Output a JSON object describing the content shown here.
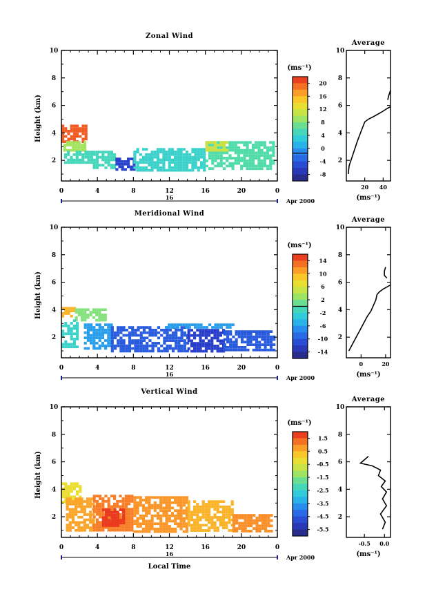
{
  "panels": [
    {
      "title": "Zonal Wind",
      "ylabel": "Height (km)",
      "y_ticks": [
        "2",
        "4",
        "6",
        "8",
        "10"
      ],
      "x_ticks": [
        "0",
        "4",
        "8",
        "12",
        "16",
        "20",
        "0"
      ],
      "date_day": "16",
      "date_month": "Apr 2000",
      "colorbar": {
        "unit_label": "(ms⁻¹)",
        "range": [
          -8,
          22
        ],
        "tick_labels": [
          "20",
          "16",
          "12",
          "8",
          "4",
          "0",
          "-4",
          "-8"
        ],
        "zero_line_value": 0
      },
      "avg": {
        "title": "Average",
        "x_ticks": [
          "20",
          "40"
        ],
        "unit_label": "(ms⁻¹)",
        "y_ticks": [
          "2",
          "4",
          "6",
          "8",
          "10"
        ]
      }
    },
    {
      "title": "Meridional Wind",
      "ylabel": "Height (km)",
      "y_ticks": [
        "2",
        "4",
        "6",
        "8",
        "10"
      ],
      "x_ticks": [
        "0",
        "4",
        "8",
        "12",
        "16",
        "20",
        "0"
      ],
      "date_day": "16",
      "date_month": "Apr 2000",
      "colorbar": {
        "unit_label": "(ms⁻¹)",
        "range": [
          -16,
          16
        ],
        "tick_labels": [
          "14",
          "10",
          "6",
          "2",
          "-2",
          "-6",
          "-10",
          "-14"
        ],
        "zero_line_value": 0
      },
      "avg": {
        "title": "Average",
        "x_ticks": [
          "0",
          "20"
        ],
        "unit_label": "(ms⁻¹)",
        "y_ticks": [
          "2",
          "4",
          "6",
          "8",
          "10"
        ]
      }
    },
    {
      "title": "Vertical Wind",
      "ylabel": "Height (km)",
      "y_ticks": [
        "2",
        "4",
        "6",
        "8",
        "10"
      ],
      "x_ticks": [
        "0",
        "4",
        "8",
        "12",
        "16",
        "20",
        "0"
      ],
      "date_day": "16",
      "date_month": "Apr 2000",
      "xlabel": "Local Time",
      "colorbar": {
        "unit_label": "(ms⁻¹)",
        "range": [
          -7,
          2
        ],
        "tick_labels": [
          "1.5",
          "0.5",
          "-0.5",
          "-1.5",
          "-2.5",
          "-3.5",
          "-4.5",
          "-5.5"
        ],
        "zero_line_value": null
      },
      "avg": {
        "title": "Average",
        "x_ticks": [
          "-0.5",
          "0.0"
        ],
        "unit_label": "(ms⁻¹)",
        "y_ticks": [
          "2",
          "4",
          "6",
          "8",
          "10"
        ]
      }
    }
  ],
  "chart_data": [
    {
      "type": "heatmap",
      "title": "Zonal Wind",
      "xlabel": "",
      "ylabel": "Height (km)",
      "xlim": [
        0,
        24
      ],
      "ylim": [
        0.5,
        10
      ],
      "x_ticks": [
        0,
        4,
        8,
        12,
        16,
        20,
        24
      ],
      "color_range": [
        -8,
        22
      ],
      "regions": [
        {
          "x": [
            0,
            2.6
          ],
          "y": [
            3.3,
            4.6
          ],
          "value": 20
        },
        {
          "x": [
            0.2,
            2.6
          ],
          "y": [
            2.7,
            3.4
          ],
          "value": 10
        },
        {
          "x": [
            0.3,
            3.2
          ],
          "y": [
            1.8,
            2.7
          ],
          "value": 6
        },
        {
          "x": [
            3.5,
            6
          ],
          "y": [
            1.5,
            2.7
          ],
          "value": 6
        },
        {
          "x": [
            6,
            8.2
          ],
          "y": [
            1.4,
            2.2
          ],
          "value": -4
        },
        {
          "x": [
            8,
            16
          ],
          "y": [
            1.3,
            2.9
          ],
          "value": 5
        },
        {
          "x": [
            16,
            23.5
          ],
          "y": [
            1.3,
            3.4
          ],
          "value": 7
        },
        {
          "x": [
            16,
            18.5
          ],
          "y": [
            2.8,
            3.4
          ],
          "value": 12
        }
      ],
      "average_profile": {
        "xlabel": "(ms⁻¹)",
        "xlim": [
          0,
          48
        ],
        "ylim": [
          0.5,
          10
        ],
        "x": [
          2,
          3,
          6,
          9,
          12,
          16,
          20,
          24,
          30,
          38,
          45,
          48
        ],
        "y": [
          1.0,
          1.6,
          2.2,
          2.8,
          3.4,
          4.1,
          4.8,
          5.0,
          5.2,
          5.5,
          5.8,
          5.9
        ],
        "x_upper": [
          45,
          46,
          47,
          48
        ],
        "y_upper": [
          6.4,
          6.7,
          6.9,
          7.1
        ]
      }
    },
    {
      "type": "heatmap",
      "title": "Meridional Wind",
      "xlabel": "",
      "ylabel": "Height (km)",
      "xlim": [
        0,
        24
      ],
      "ylim": [
        0.5,
        10
      ],
      "x_ticks": [
        0,
        4,
        8,
        12,
        16,
        20,
        24
      ],
      "color_range": [
        -16,
        16
      ],
      "regions": [
        {
          "x": [
            0,
            1.5
          ],
          "y": [
            3.6,
            4.2
          ],
          "value": 10
        },
        {
          "x": [
            1.5,
            5
          ],
          "y": [
            3.3,
            4.1
          ],
          "value": 2
        },
        {
          "x": [
            0,
            1.8
          ],
          "y": [
            1.2,
            3.3
          ],
          "value": -2
        },
        {
          "x": [
            2.5,
            5.5
          ],
          "y": [
            1.1,
            3.0
          ],
          "value": -6
        },
        {
          "x": [
            5.5,
            14
          ],
          "y": [
            1.0,
            2.8
          ],
          "value": -10
        },
        {
          "x": [
            14,
            18
          ],
          "y": [
            1.0,
            2.6
          ],
          "value": -12
        },
        {
          "x": [
            18,
            23.5
          ],
          "y": [
            1.0,
            2.5
          ],
          "value": -10
        },
        {
          "x": [
            11.5,
            19.2
          ],
          "y": [
            2.8,
            3.0
          ],
          "value": -6
        }
      ],
      "average_profile": {
        "xlabel": "(ms⁻¹)",
        "xlim": [
          -12,
          24
        ],
        "ylim": [
          0.5,
          10
        ],
        "x": [
          -10,
          -7,
          -4,
          -1,
          2,
          5,
          8,
          10,
          12,
          13,
          15,
          18,
          24
        ],
        "y": [
          1.0,
          1.5,
          2.0,
          2.5,
          3.0,
          3.5,
          3.9,
          4.3,
          4.7,
          5.1,
          5.3,
          5.5,
          5.8
        ],
        "x_upper": [
          21,
          19,
          19,
          20
        ],
        "y_upper": [
          6.3,
          6.5,
          6.8,
          7.1
        ]
      }
    },
    {
      "type": "heatmap",
      "title": "Vertical Wind",
      "xlabel": "Local Time",
      "ylabel": "Height (km)",
      "xlim": [
        0,
        24
      ],
      "ylim": [
        0.5,
        10
      ],
      "x_ticks": [
        0,
        4,
        8,
        12,
        16,
        20,
        24
      ],
      "color_range": [
        -7,
        2
      ],
      "regions": [
        {
          "x": [
            0,
            2
          ],
          "y": [
            3.0,
            4.5
          ],
          "value": -0.5
        },
        {
          "x": [
            0.5,
            3.5
          ],
          "y": [
            1.0,
            3.4
          ],
          "value": 0.5
        },
        {
          "x": [
            3.5,
            8
          ],
          "y": [
            1.0,
            3.6
          ],
          "value": 1.0
        },
        {
          "x": [
            4.5,
            7
          ],
          "y": [
            1.3,
            2.6
          ],
          "value": 1.8
        },
        {
          "x": [
            8,
            14
          ],
          "y": [
            1.0,
            3.5
          ],
          "value": 0.7
        },
        {
          "x": [
            14,
            19
          ],
          "y": [
            1.0,
            3.2
          ],
          "value": 0.3
        },
        {
          "x": [
            19,
            23.5
          ],
          "y": [
            1.0,
            2.2
          ],
          "value": 0.8
        }
      ],
      "average_profile": {
        "xlabel": "(ms⁻¹)",
        "xlim": [
          -0.95,
          0.15
        ],
        "ylim": [
          0.5,
          10
        ],
        "x": [
          -0.05,
          0.02,
          -0.1,
          0.05,
          -0.05,
          0.05,
          -0.08,
          0.02,
          -0.15,
          -0.1,
          -0.3,
          -0.6,
          -0.4
        ],
        "y": [
          1.1,
          1.6,
          2.2,
          2.8,
          3.3,
          3.8,
          4.2,
          4.6,
          5.0,
          5.4,
          5.7,
          5.9,
          6.4
        ]
      }
    }
  ]
}
